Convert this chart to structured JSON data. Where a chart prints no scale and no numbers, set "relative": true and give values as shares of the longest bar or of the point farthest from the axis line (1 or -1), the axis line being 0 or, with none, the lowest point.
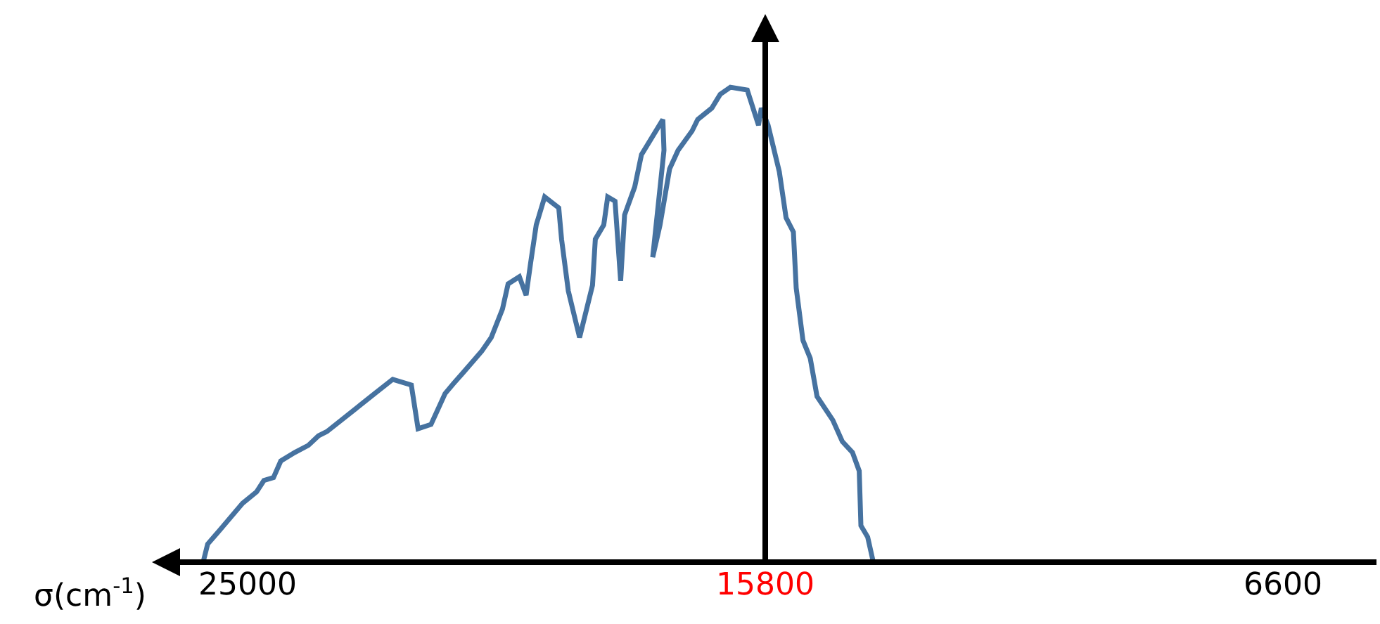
{
  "chart_data": {
    "type": "line",
    "xlabel": "σ(cm$^{-1}$)",
    "relative": true,
    "xlim": [
      26700,
      4900
    ],
    "xticks": [
      25000,
      15800,
      6600
    ],
    "x": [
      25790,
      25710,
      25490,
      25090,
      24840,
      24710,
      24540,
      24410,
      24160,
      23920,
      23740,
      23590,
      22740,
      22420,
      22090,
      21970,
      21740,
      21490,
      21340,
      21170,
      20840,
      20670,
      20470,
      20370,
      20170,
      20050,
      19970,
      19870,
      19720,
      19470,
      19420,
      19300,
      19100,
      18870,
      18820,
      18670,
      18600,
      18470,
      18370,
      18300,
      18120,
      18000,
      17620,
      17600,
      17800,
      17670,
      17500,
      17350,
      17100,
      17000,
      16750,
      16600,
      16420,
      16120,
      15920,
      15870,
      15750,
      15550,
      15430,
      15300,
      15250,
      15130,
      15000,
      14880,
      14600,
      14430,
      14250,
      14130,
      14100,
      13980,
      13880
    ],
    "series": [
      {
        "color": "#4672a0",
        "values": [
          0,
          0.038,
          0.068,
          0.124,
          0.148,
          0.172,
          0.178,
          0.213,
          0.231,
          0.246,
          0.266,
          0.275,
          0.355,
          0.385,
          0.373,
          0.281,
          0.29,
          0.355,
          0.376,
          0.399,
          0.444,
          0.473,
          0.533,
          0.586,
          0.601,
          0.562,
          0.63,
          0.71,
          0.769,
          0.746,
          0.68,
          0.571,
          0.473,
          0.583,
          0.68,
          0.71,
          0.769,
          0.76,
          0.592,
          0.731,
          0.79,
          0.858,
          0.932,
          0.867,
          0.642,
          0.71,
          0.828,
          0.867,
          0.908,
          0.932,
          0.956,
          0.985,
          1,
          0.994,
          0.92,
          0.956,
          0.92,
          0.822,
          0.725,
          0.695,
          0.577,
          0.467,
          0.429,
          0.349,
          0.299,
          0.254,
          0.231,
          0.192,
          0.077,
          0.053,
          0
        ]
      }
    ],
    "ref_lines": [
      {
        "axis": "x",
        "value": 15800,
        "color": "#000000"
      }
    ]
  }
}
